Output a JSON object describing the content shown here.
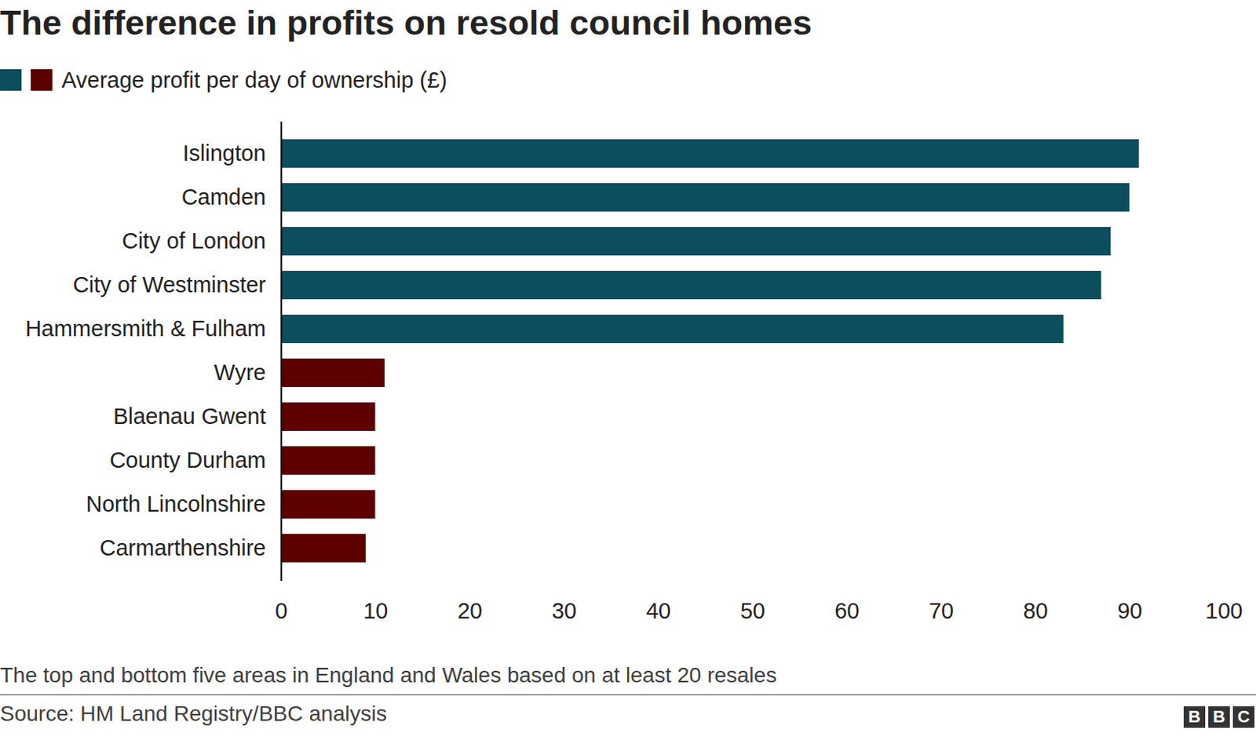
{
  "chart_data": {
    "type": "bar",
    "orientation": "horizontal",
    "title": "The difference in profits on resold council homes",
    "caption": "The top and bottom five areas in England and Wales based on at least 20 resales",
    "source": "Source: HM Land Registry/BBC analysis",
    "logo": "BBC",
    "categories": [
      "Islington",
      "Camden",
      "City of London",
      "City of Westminster",
      "Hammersmith & Fulham",
      "Wyre",
      "Blaenau Gwent",
      "County Durham",
      "North Lincolnshire",
      "Carmarthenshire"
    ],
    "series": [
      {
        "name": "Average profit per day of ownership (£)",
        "values": [
          91,
          90,
          88,
          87,
          83,
          11,
          10,
          10,
          10,
          9
        ]
      }
    ],
    "colors": [
      "#0c4e5e",
      "#0c4e5e",
      "#0c4e5e",
      "#0c4e5e",
      "#0c4e5e",
      "#5c0000",
      "#5c0000",
      "#5c0000",
      "#5c0000",
      "#5c0000"
    ],
    "xlim": [
      0,
      100
    ],
    "xticks": [
      0,
      10,
      20,
      30,
      40,
      50,
      60,
      70,
      80,
      90,
      100
    ],
    "grid": false,
    "legend": "top-left"
  }
}
